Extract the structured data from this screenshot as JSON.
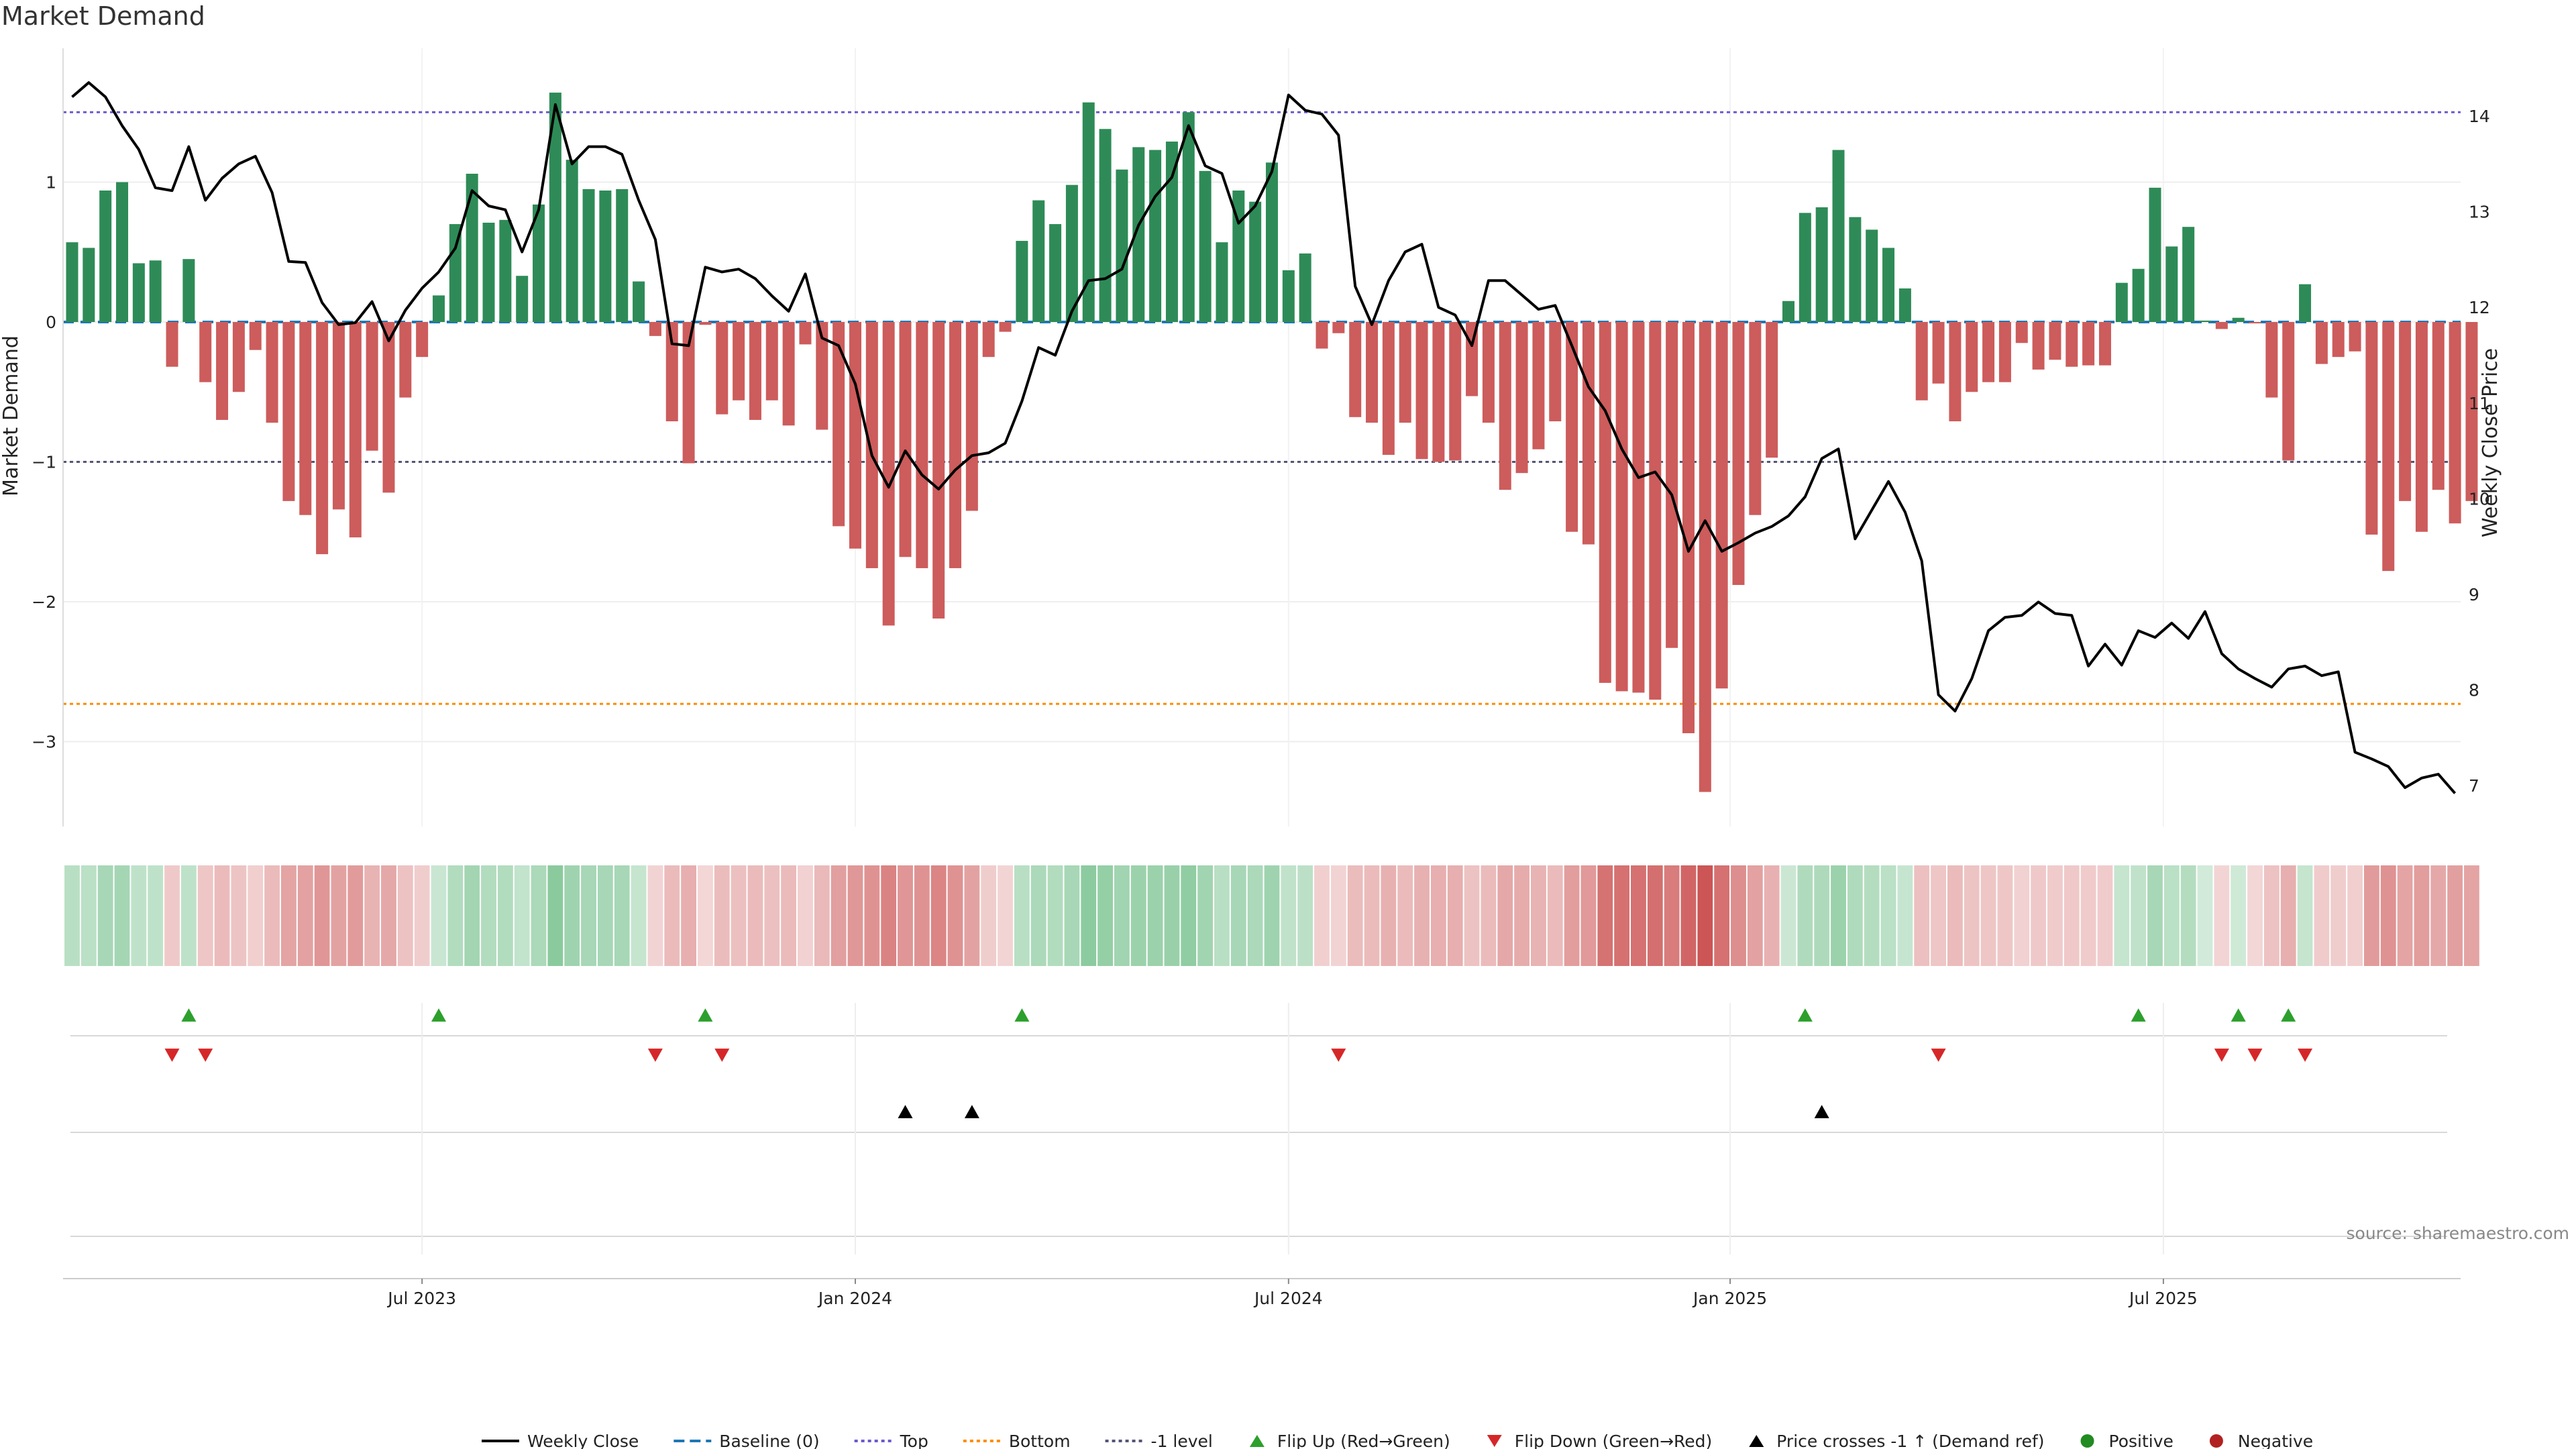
{
  "title": "Market Demand",
  "source": "source: sharemaestro.com",
  "colors": {
    "positive": "#2e8b57",
    "negative": "#cd5c5c",
    "price": "#000000",
    "baseline": "#1f77b4",
    "top": "#6a5acd",
    "bottom": "#ff8c00",
    "neg_one": "#555577",
    "flip_up": "#2ca02c",
    "flip_down": "#d62728",
    "cross": "#000000",
    "legend_positive": "#228b22",
    "legend_negative": "#b22222"
  },
  "chart_data": {
    "type": "bar",
    "title": "Market Demand",
    "ylabel": "Market Demand",
    "y2label": "Weekly Close Price",
    "ylim": [
      -3.6,
      1.95
    ],
    "y2lim": [
      6.6,
      14.8
    ],
    "yticks": [
      1,
      0,
      -1,
      -2,
      -3
    ],
    "y2ticks": [
      14,
      13,
      12,
      11,
      10,
      9,
      8,
      7
    ],
    "reference_lines": {
      "top": 1.5,
      "bottom": -2.73,
      "neg_one": -1.0,
      "baseline": 0
    },
    "x_ticks": [
      {
        "label": "Jul 2023",
        "index": 21
      },
      {
        "label": "Jan 2024",
        "index": 47
      },
      {
        "label": "Jul 2024",
        "index": 73
      },
      {
        "label": "Jan 2025",
        "index": 99.5
      },
      {
        "label": "Jul 2025",
        "index": 125.5
      }
    ],
    "demand": [
      0.57,
      0.53,
      0.94,
      1.0,
      0.42,
      0.44,
      -0.32,
      0.45,
      -0.43,
      -0.7,
      -0.5,
      -0.2,
      -0.72,
      -1.28,
      -1.38,
      -1.66,
      -1.34,
      -1.54,
      -0.92,
      -1.22,
      -0.54,
      -0.25,
      0.19,
      0.7,
      1.06,
      0.71,
      0.73,
      0.33,
      0.84,
      1.64,
      1.16,
      0.95,
      0.94,
      0.95,
      0.29,
      -0.1,
      -0.71,
      -1.01,
      -0.02,
      -0.66,
      -0.56,
      -0.7,
      -0.56,
      -0.74,
      -0.16,
      -0.77,
      -1.46,
      -1.62,
      -1.76,
      -2.17,
      -1.68,
      -1.76,
      -2.12,
      -1.76,
      -1.35,
      -0.25,
      -0.07,
      0.58,
      0.87,
      0.7,
      0.98,
      1.57,
      1.38,
      1.09,
      1.25,
      1.23,
      1.29,
      1.5,
      1.08,
      0.57,
      0.94,
      0.86,
      1.14,
      0.37,
      0.49,
      -0.19,
      -0.08,
      -0.68,
      -0.72,
      -0.95,
      -0.72,
      -0.98,
      -1.0,
      -0.99,
      -0.53,
      -0.72,
      -1.2,
      -1.08,
      -0.91,
      -0.71,
      -1.5,
      -1.59,
      -2.58,
      -2.64,
      -2.65,
      -2.7,
      -2.33,
      -2.94,
      -3.36,
      -2.62,
      -1.88,
      -1.38,
      -0.97,
      0.15,
      0.78,
      0.82,
      1.23,
      0.75,
      0.66,
      0.53,
      0.24,
      -0.56,
      -0.44,
      -0.71,
      -0.5,
      -0.43,
      -0.43,
      -0.15,
      -0.34,
      -0.27,
      -0.32,
      -0.31,
      -0.31,
      0.28,
      0.38,
      0.96,
      0.54,
      0.68,
      0.01,
      -0.05,
      0.03,
      -0.01,
      -0.54,
      -0.99,
      0.27,
      -0.3,
      -0.25,
      -0.21,
      -1.52,
      -1.78,
      -1.28,
      -1.5,
      -1.2,
      -1.44,
      -1.28
    ],
    "price": [
      14.2,
      14.35,
      14.2,
      13.9,
      13.65,
      13.25,
      13.22,
      13.68,
      13.12,
      13.35,
      13.5,
      13.58,
      13.2,
      12.48,
      12.47,
      12.05,
      11.82,
      11.84,
      12.06,
      11.65,
      11.97,
      12.2,
      12.37,
      12.62,
      13.22,
      13.06,
      13.02,
      12.58,
      13.02,
      14.12,
      13.5,
      13.68,
      13.68,
      13.6,
      13.12,
      12.71,
      11.62,
      11.6,
      12.42,
      12.37,
      12.4,
      12.3,
      12.12,
      11.96,
      12.35,
      11.68,
      11.6,
      11.2,
      10.45,
      10.12,
      10.5,
      10.25,
      10.1,
      10.3,
      10.45,
      10.48,
      10.58,
      11.02,
      11.58,
      11.5,
      11.96,
      12.28,
      12.3,
      12.4,
      12.86,
      13.16,
      13.36,
      13.9,
      13.48,
      13.4,
      12.88,
      13.06,
      13.42,
      14.22,
      14.06,
      14.02,
      13.8,
      12.22,
      11.82,
      12.28,
      12.58,
      12.66,
      12.0,
      11.92,
      11.6,
      12.28,
      12.28,
      12.13,
      11.98,
      12.02,
      11.6,
      11.17,
      10.92,
      10.52,
      10.22,
      10.28,
      10.04,
      9.45,
      9.77,
      9.45,
      9.54,
      9.64,
      9.71,
      9.82,
      10.02,
      10.42,
      10.52,
      9.58,
      9.88,
      10.18,
      9.86,
      9.35,
      7.95,
      7.78,
      8.12,
      8.62,
      8.76,
      8.78,
      8.92,
      8.8,
      8.78,
      8.25,
      8.48,
      8.26,
      8.62,
      8.55,
      8.7,
      8.54,
      8.82,
      8.38,
      8.22,
      8.12,
      8.03,
      8.22,
      8.25,
      8.15,
      8.19,
      7.35,
      7.28,
      7.2,
      6.98,
      7.08,
      7.12,
      6.92
    ],
    "flip_up": [
      7,
      22,
      38,
      57,
      104,
      124,
      130,
      133
    ],
    "flip_down": [
      6,
      8,
      35,
      39,
      76,
      112,
      129,
      131,
      134
    ],
    "price_crosses_neg1_up": [
      50,
      54,
      105
    ]
  },
  "legend": [
    {
      "label": "Weekly Close",
      "symbol": "solid-line",
      "color": "#000000"
    },
    {
      "label": "Baseline (0)",
      "symbol": "dashed-line",
      "color": "#1f77b4"
    },
    {
      "label": "Top",
      "symbol": "dotted-line",
      "color": "#6a5acd"
    },
    {
      "label": "Bottom",
      "symbol": "dotted-line",
      "color": "#ff8c00"
    },
    {
      "label": "-1 level",
      "symbol": "dotted-line",
      "color": "#555577"
    },
    {
      "label": "Flip Up (Red→Green)",
      "symbol": "triangle-up",
      "color": "#2ca02c"
    },
    {
      "label": "Flip Down (Green→Red)",
      "symbol": "triangle-down",
      "color": "#d62728"
    },
    {
      "label": "Price crosses -1 ↑ (Demand ref)",
      "symbol": "triangle-up",
      "color": "#000000"
    },
    {
      "label": "Positive",
      "symbol": "circle",
      "color": "#228b22"
    },
    {
      "label": "Negative",
      "symbol": "circle",
      "color": "#b22222"
    }
  ]
}
